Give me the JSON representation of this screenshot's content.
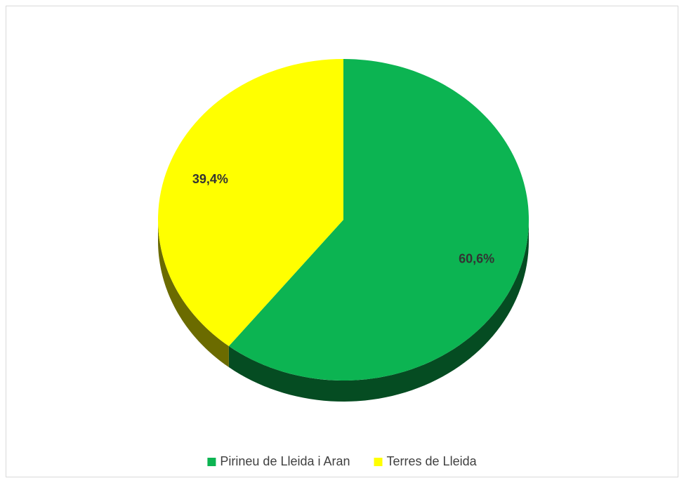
{
  "chart_data": {
    "type": "pie",
    "categories": [
      "Pirineu de Lleida i Aran",
      "Terres de Lleida"
    ],
    "values": [
      60.6,
      39.4
    ],
    "value_labels": [
      "60,6%",
      "39,4%"
    ],
    "colors": [
      "#0cb452",
      "#ffff00"
    ],
    "legend": "bottom"
  }
}
